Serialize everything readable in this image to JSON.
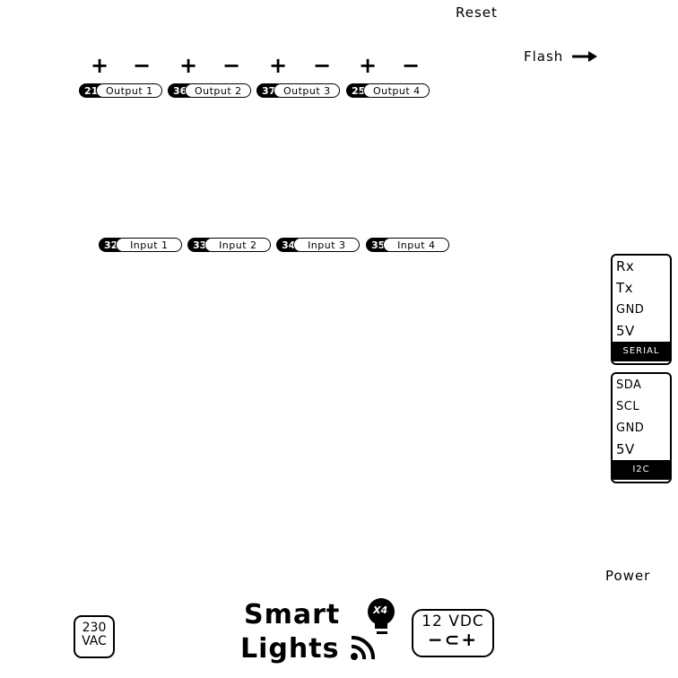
{
  "labels": {
    "reset": "Reset",
    "flash": "Flash",
    "power": "Power"
  },
  "outputs": [
    {
      "pin": "21",
      "name": "Output 1",
      "plus": "+",
      "minus": "−"
    },
    {
      "pin": "36",
      "name": "Output 2",
      "plus": "+",
      "minus": "−"
    },
    {
      "pin": "37",
      "name": "Output 3",
      "plus": "+",
      "minus": "−"
    },
    {
      "pin": "25",
      "name": "Output 4",
      "plus": "+",
      "minus": "−"
    }
  ],
  "inputs": [
    {
      "pin": "32",
      "name": "Input 1"
    },
    {
      "pin": "33",
      "name": "Input 2"
    },
    {
      "pin": "34",
      "name": "Input 3"
    },
    {
      "pin": "35",
      "name": "Input 4"
    }
  ],
  "serial": {
    "pins": [
      "Rx",
      "Tx",
      "GND",
      "5V"
    ],
    "title": "SERIAL"
  },
  "i2c": {
    "pins": [
      "SDA",
      "SCL",
      "GND",
      "5V"
    ],
    "title": "I2C"
  },
  "logo": {
    "line1": "Smart",
    "line2": "Lights",
    "badge": "X4",
    "icons": [
      "bulb-icon",
      "wifi-icon",
      "arrow-right-icon"
    ]
  },
  "ac_badge": {
    "line1": "230",
    "line2": "VAC"
  },
  "dc_badge": {
    "line1": "12 VDC",
    "line2": "−⊂+"
  }
}
